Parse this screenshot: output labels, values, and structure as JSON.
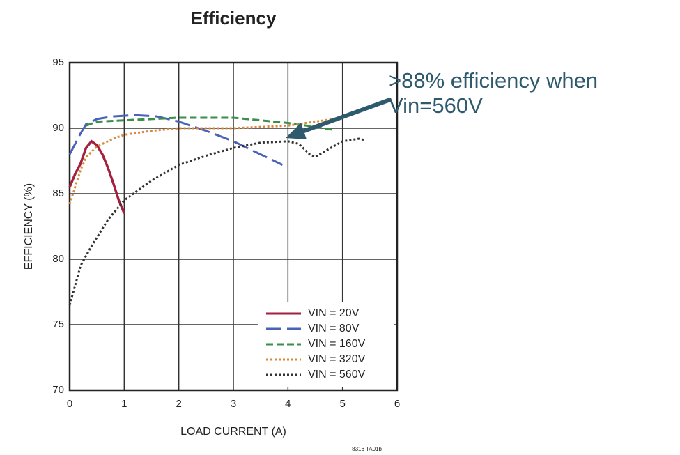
{
  "chart_data": {
    "type": "line",
    "title": "Efficiency",
    "xlabel": "LOAD CURRENT (A)",
    "ylabel": "EFFICIENCY (%)",
    "xlim": [
      0,
      6
    ],
    "xticks": [
      0,
      1,
      2,
      3,
      4,
      5,
      6
    ],
    "ylim": [
      70,
      95
    ],
    "yticks": [
      70,
      75,
      80,
      85,
      90,
      95
    ],
    "grid": true,
    "legend": "lower right",
    "series": [
      {
        "name": "VIN = 20V",
        "color": "#a3203f",
        "dash": "solid",
        "x": [
          0,
          0.1,
          0.2,
          0.3,
          0.4,
          0.5,
          0.6,
          0.7,
          0.8,
          0.9,
          1
        ],
        "values": [
          85.5,
          86.5,
          87.3,
          88.5,
          89,
          88.7,
          88,
          87,
          85.8,
          84.5,
          83.5
        ]
      },
      {
        "name": "VIN = 80V",
        "color": "#4a62b8",
        "dash": "long",
        "x": [
          0,
          0.1,
          0.2,
          0.3,
          0.5,
          0.8,
          1.2,
          1.6,
          2,
          2.5,
          3,
          3.5,
          3.9
        ],
        "values": [
          88,
          88.8,
          89.6,
          90.3,
          90.7,
          90.9,
          91,
          90.9,
          90.5,
          89.8,
          89,
          88,
          87.2
        ]
      },
      {
        "name": "VIN = 160V",
        "color": "#3a8f4a",
        "dash": "dashed",
        "x": [
          0.3,
          0.5,
          1,
          1.5,
          2,
          2.5,
          3,
          3.5,
          4,
          4.5,
          4.8
        ],
        "values": [
          90.2,
          90.5,
          90.6,
          90.7,
          90.8,
          90.8,
          90.8,
          90.6,
          90.4,
          90.1,
          89.9
        ]
      },
      {
        "name": "VIN = 320V",
        "color": "#d9893a",
        "dash": "dotted",
        "x": [
          0,
          0.1,
          0.2,
          0.3,
          0.5,
          0.8,
          1,
          1.5,
          2,
          3,
          4,
          4.5,
          5
        ],
        "values": [
          84.2,
          85.5,
          86.8,
          87.8,
          88.6,
          89.2,
          89.5,
          89.8,
          90,
          90,
          90.2,
          90.5,
          90.8
        ]
      },
      {
        "name": "VIN = 560V",
        "color": "#333333",
        "dash": "dotted",
        "x": [
          0,
          0.1,
          0.2,
          0.4,
          0.7,
          1,
          1.5,
          2,
          2.5,
          3,
          3.5,
          4,
          4.2,
          4.4,
          4.5,
          4.7,
          5,
          5.3,
          5.4
        ],
        "values": [
          76.5,
          78,
          79.5,
          81,
          83,
          84.5,
          86,
          87.2,
          87.9,
          88.5,
          88.9,
          89,
          88.8,
          88,
          87.8,
          88.3,
          89,
          89.2,
          89.1
        ]
      }
    ],
    "annotation": {
      "lines": [
        ">88% efficiency when",
        "Vin=560V"
      ],
      "color": "#2e5a6e"
    },
    "footnote": "8316 TA01b"
  }
}
